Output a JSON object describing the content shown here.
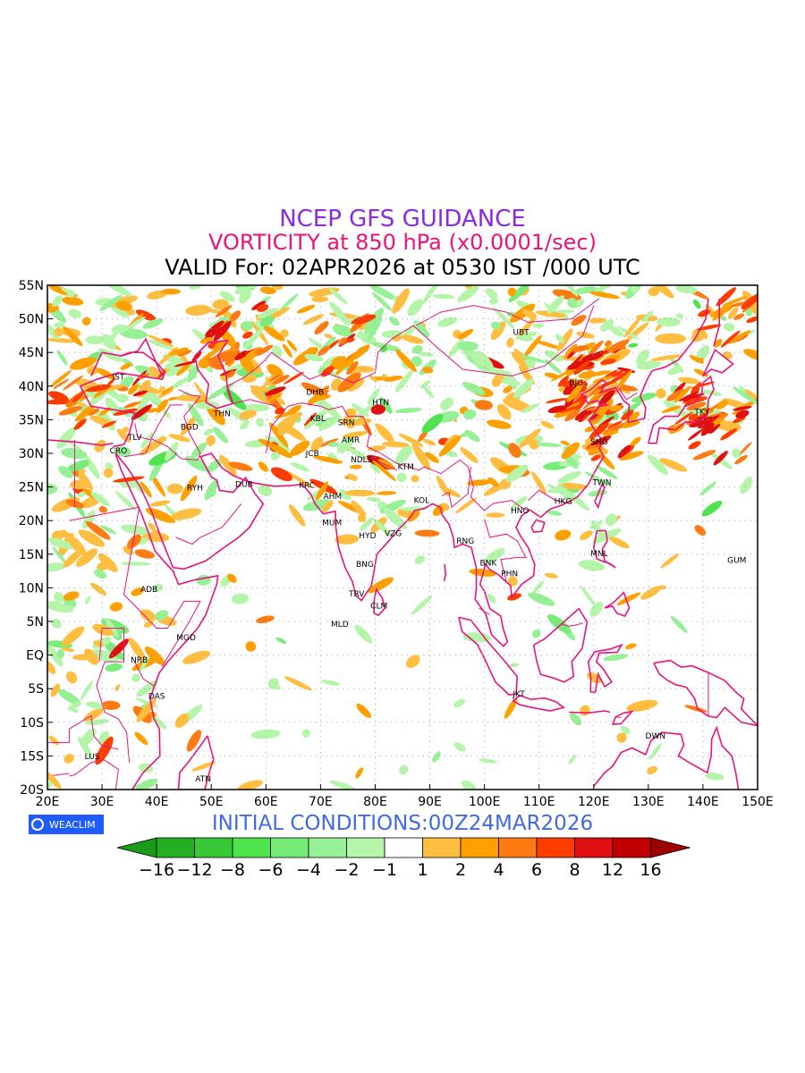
{
  "header": {
    "title": "NCEP GFS GUIDANCE",
    "subtitle": "VORTICITY at 850 hPa (x0.0001/sec)",
    "valid": "VALID For: 02APR2026 at 0530 IST /000 UTC"
  },
  "initial_conditions": "INITIAL CONDITIONS:00Z24MAR2026",
  "logo_text": "WEACLIM",
  "map": {
    "lon_range": [
      20,
      150
    ],
    "lat_range": [
      -20,
      55
    ],
    "lon_ticks": [
      "20E",
      "30E",
      "40E",
      "50E",
      "60E",
      "70E",
      "80E",
      "90E",
      "100E",
      "110E",
      "120E",
      "130E",
      "140E",
      "150E"
    ],
    "lat_ticks": [
      "20S",
      "15S",
      "10S",
      "5S",
      "EQ",
      "5N",
      "10N",
      "15N",
      "20N",
      "25N",
      "30N",
      "35N",
      "40N",
      "45N",
      "50N",
      "55N"
    ],
    "cities": [
      {
        "code": "IST",
        "lon": 33,
        "lat": 41
      },
      {
        "code": "TLV",
        "lon": 36,
        "lat": 32
      },
      {
        "code": "CRO",
        "lon": 33,
        "lat": 30
      },
      {
        "code": "BGD",
        "lon": 46,
        "lat": 33.5
      },
      {
        "code": "THN",
        "lon": 52,
        "lat": 35.5
      },
      {
        "code": "RYH",
        "lon": 47,
        "lat": 24.5
      },
      {
        "code": "DUB",
        "lon": 56,
        "lat": 25
      },
      {
        "code": "DHB",
        "lon": 69,
        "lat": 38.7
      },
      {
        "code": "HTN",
        "lon": 81,
        "lat": 37.2
      },
      {
        "code": "KBL",
        "lon": 69.5,
        "lat": 34.8
      },
      {
        "code": "SRN",
        "lon": 74.7,
        "lat": 34.2
      },
      {
        "code": "JCB",
        "lon": 68.5,
        "lat": 29.6
      },
      {
        "code": "AMR",
        "lon": 75.5,
        "lat": 31.6
      },
      {
        "code": "NDLS",
        "lon": 77.5,
        "lat": 28.7
      },
      {
        "code": "KTM",
        "lon": 85.6,
        "lat": 27.6
      },
      {
        "code": "KRC",
        "lon": 67.5,
        "lat": 24.9
      },
      {
        "code": "AHM",
        "lon": 72.2,
        "lat": 23.2
      },
      {
        "code": "KOL",
        "lon": 88.5,
        "lat": 22.6
      },
      {
        "code": "MUM",
        "lon": 72.1,
        "lat": 19.3
      },
      {
        "code": "HYD",
        "lon": 78.6,
        "lat": 17.4
      },
      {
        "code": "VZG",
        "lon": 83.3,
        "lat": 17.7
      },
      {
        "code": "BNG",
        "lon": 78.1,
        "lat": 13.1
      },
      {
        "code": "TRV",
        "lon": 76.6,
        "lat": 8.7
      },
      {
        "code": "CLM",
        "lon": 80.7,
        "lat": 6.9
      },
      {
        "code": "MLD",
        "lon": 73.5,
        "lat": 4.2
      },
      {
        "code": "RNG",
        "lon": 96.5,
        "lat": 16.6
      },
      {
        "code": "BNK",
        "lon": 100.7,
        "lat": 13.3
      },
      {
        "code": "PHN",
        "lon": 104.6,
        "lat": 11.7
      },
      {
        "code": "HNO",
        "lon": 106.5,
        "lat": 21.1
      },
      {
        "code": "HKG",
        "lon": 114.4,
        "lat": 22.5
      },
      {
        "code": "TWN",
        "lon": 121.5,
        "lat": 25.3
      },
      {
        "code": "SHG",
        "lon": 121,
        "lat": 31.3
      },
      {
        "code": "BJG",
        "lon": 116.8,
        "lat": 40.1
      },
      {
        "code": "UBT",
        "lon": 106.7,
        "lat": 47.6
      },
      {
        "code": "TKY",
        "lon": 139.8,
        "lat": 35.8
      },
      {
        "code": "MNL",
        "lon": 121,
        "lat": 14.7
      },
      {
        "code": "GUM",
        "lon": 146.2,
        "lat": 13.7
      },
      {
        "code": "JKT",
        "lon": 106.3,
        "lat": -6.2
      },
      {
        "code": "DWN",
        "lon": 131.3,
        "lat": -12.4
      },
      {
        "code": "ADB",
        "lon": 38.6,
        "lat": 9.4
      },
      {
        "code": "MGD",
        "lon": 45.4,
        "lat": 2.2
      },
      {
        "code": "NRB",
        "lon": 36.8,
        "lat": -1.1
      },
      {
        "code": "DAS",
        "lon": 40,
        "lat": -6.5
      },
      {
        "code": "LUS",
        "lon": 28.2,
        "lat": -15.5
      },
      {
        "code": "ATN",
        "lon": 48.5,
        "lat": -18.8
      }
    ]
  },
  "colorbar": {
    "labels": [
      "−16",
      "−12",
      "−8",
      "−6",
      "−4",
      "−2",
      "−1",
      "1",
      "2",
      "4",
      "6",
      "8",
      "12",
      "16"
    ],
    "colors": [
      "#1a9c1a",
      "#22b022",
      "#38c838",
      "#4ee44e",
      "#78ec78",
      "#96f096",
      "#b4f5aa",
      "#ffffff",
      "#ffbe40",
      "#ffa000",
      "#ff7a10",
      "#ff3c00",
      "#e01010",
      "#c00000",
      "#9c0000"
    ]
  }
}
